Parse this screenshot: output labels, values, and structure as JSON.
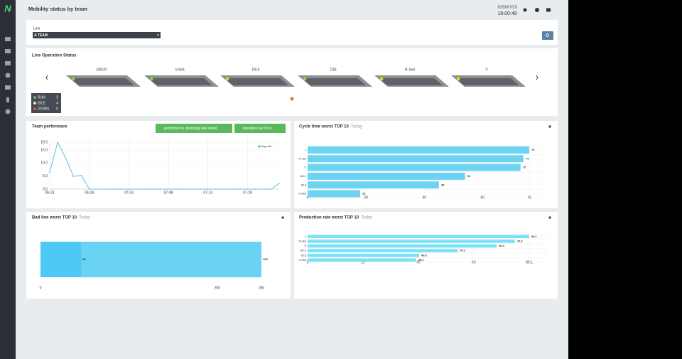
{
  "logo": "N",
  "header": {
    "title": "Mobility status by team",
    "date": "2020/07/23",
    "time": "18:00:48"
  },
  "filter": {
    "label": "Line",
    "selected": "A TEAM"
  },
  "line_status": {
    "title": "Line Operation Status",
    "machines": [
      "JUNJO",
      "V-Slot",
      "D8.9",
      "D18",
      "R-Slot",
      "V"
    ],
    "legend": [
      {
        "name": "RUN",
        "count": 2
      },
      {
        "name": "IDLE",
        "count": 4
      },
      {
        "name": "DOWN",
        "count": 0
      }
    ]
  },
  "buttons": [
    "performance operating rate detail",
    "operation per hour"
  ],
  "chart_data": [
    {
      "type": "line",
      "title": "Team performace",
      "categories": [
        "06-23",
        null,
        null,
        null,
        null,
        "06-28",
        null,
        null,
        null,
        null,
        "07-03",
        null,
        null,
        null,
        null,
        "07-08",
        null,
        null,
        null,
        null,
        "07-13",
        null,
        null,
        null,
        null,
        "07-18",
        null,
        null,
        null,
        null
      ],
      "series": [
        {
          "name": "avg rate",
          "color": "#5bc0eb",
          "values": [
            6.5,
            18,
            12,
            4.9,
            5.2,
            0,
            0,
            0,
            0,
            0,
            0,
            0,
            0,
            0,
            0,
            0,
            0,
            0,
            0,
            0,
            0,
            0,
            0,
            0,
            0,
            0,
            0,
            0,
            0,
            2.2
          ]
        }
      ],
      "ylim": [
        0,
        18
      ],
      "yticks": [
        {
          "value": 0,
          "label": "0.0"
        },
        {
          "value": 5,
          "label": "5.0"
        },
        {
          "value": 10,
          "label": "10.0"
        },
        {
          "value": 15,
          "label": "15.0"
        },
        {
          "value": 18,
          "label": "18.0"
        }
      ],
      "grid": true
    },
    {
      "type": "bar",
      "orientation": "horizontal",
      "title": "Cycle time worst TOP 10",
      "subtitle": "Today",
      "categories": [
        "J",
        "R-slot",
        "V",
        "D8.9",
        "D18",
        "V-Slot"
      ],
      "values": [
        76,
        74,
        73,
        54,
        45,
        18
      ],
      "color": "#6dd3f2",
      "xlim": [
        0,
        76
      ],
      "xticks": [
        0,
        20,
        40,
        60,
        76
      ],
      "grid": true
    },
    {
      "type": "bar",
      "orientation": "horizontal",
      "title": "Bad line worst TOP 10",
      "subtitle": "Today",
      "series": [
        {
          "color": "#4ccaf5",
          "values": [
            46
          ]
        },
        {
          "color": "#6ad2f2",
          "values": [
            250
          ]
        }
      ],
      "xlim": [
        0,
        250
      ],
      "xticks": [
        0,
        200,
        250
      ]
    },
    {
      "type": "bar",
      "orientation": "horizontal",
      "title": "Production rate worst TOP 10",
      "subtitle": "Today",
      "categories": [
        "J",
        "R-slot",
        "V",
        "D8.9",
        "D18",
        "V-Slot"
      ],
      "values": [
        80.1,
        74.9,
        68.3,
        54.2,
        40.3,
        39.2
      ],
      "color": "#7ae2f6",
      "xlim": [
        0,
        80.1
      ],
      "xticks": [
        0,
        20,
        40,
        60,
        80.1
      ],
      "grid": true
    }
  ]
}
